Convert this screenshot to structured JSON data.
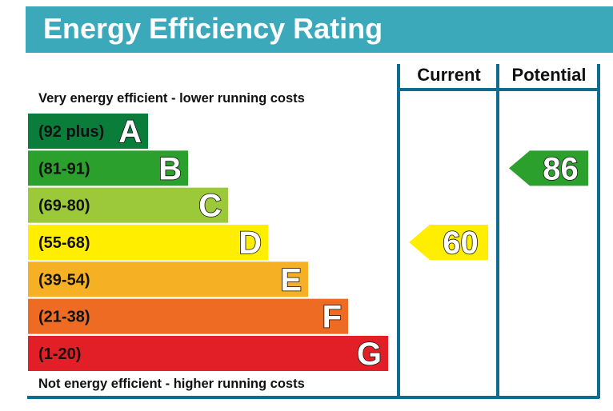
{
  "title": "Energy Efficiency Rating",
  "colors": {
    "header": "#3ca9bb",
    "frame": "#0f6b8f"
  },
  "chart_data": {
    "type": "bar",
    "top_caption": "Very energy efficient - lower running costs",
    "bottom_caption": "Not energy efficient - higher running costs",
    "columns": [
      "Current",
      "Potential"
    ],
    "bands": [
      {
        "letter": "A",
        "range": "(92 plus)",
        "min": 92,
        "max": 100,
        "color": "#0a7d3b"
      },
      {
        "letter": "B",
        "range": "(81-91)",
        "min": 81,
        "max": 91,
        "color": "#2ca02c"
      },
      {
        "letter": "C",
        "range": "(69-80)",
        "min": 69,
        "max": 80,
        "color": "#9bc93a"
      },
      {
        "letter": "D",
        "range": "(55-68)",
        "min": 55,
        "max": 68,
        "color": "#ffee00"
      },
      {
        "letter": "E",
        "range": "(39-54)",
        "min": 39,
        "max": 54,
        "color": "#f5b123"
      },
      {
        "letter": "F",
        "range": "(21-38)",
        "min": 21,
        "max": 38,
        "color": "#ee6b24"
      },
      {
        "letter": "G",
        "range": "(1-20)",
        "min": 1,
        "max": 20,
        "color": "#e21f26"
      }
    ],
    "ratings": [
      {
        "column": "Current",
        "value": 60,
        "band": "D",
        "color": "#ffee00"
      },
      {
        "column": "Potential",
        "value": 86,
        "band": "B",
        "color": "#2ca02c"
      }
    ]
  }
}
